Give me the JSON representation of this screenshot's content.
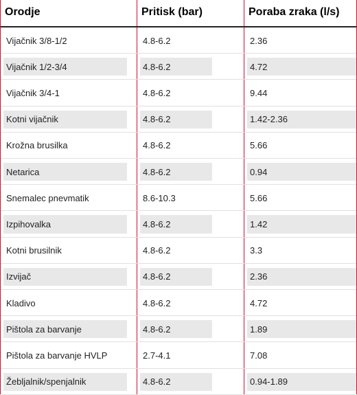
{
  "header": {
    "col1": "Orodje",
    "col2": "Pritisk  (bar)",
    "col3": "Poraba zraka (l/s)"
  },
  "rows": [
    {
      "tool": "Vijačnik 3/8-1/2",
      "pressure": "4.8-6.2",
      "consumption": "2.36"
    },
    {
      "tool": "Vijačnik 1/2-3/4",
      "pressure": "4.8-6.2",
      "consumption": "4.72"
    },
    {
      "tool": "Vijačnik 3/4-1",
      "pressure": "4.8-6.2",
      "consumption": "9.44"
    },
    {
      "tool": "Kotni vijačnik",
      "pressure": "4.8-6.2",
      "consumption": "1.42-2.36"
    },
    {
      "tool": "Krožna brusilka",
      "pressure": "4.8-6.2",
      "consumption": "5.66"
    },
    {
      "tool": "Netarica",
      "pressure": "4.8-6.2",
      "consumption": "0.94"
    },
    {
      "tool": "Snemalec pnevmatik",
      "pressure": "8.6-10.3",
      "consumption": "5.66"
    },
    {
      "tool": "Izpihovalka",
      "pressure": "4.8-6.2",
      "consumption": "1.42"
    },
    {
      "tool": "Kotni brusilnik",
      "pressure": "4.8-6.2",
      "consumption": "3.3"
    },
    {
      "tool": "Izvijač",
      "pressure": "4.8-6.2",
      "consumption": "2.36"
    },
    {
      "tool": "Kladivo",
      "pressure": "4.8-6.2",
      "consumption": "4.72"
    },
    {
      "tool": "Pištola za barvanje",
      "pressure": "4.8-6.2",
      "consumption": "1.89"
    },
    {
      "tool": "Pištola za barvanje HVLP",
      "pressure": "2.7-4.1",
      "consumption": "7.08"
    },
    {
      "tool": "Žebljalnik/spenjalnik",
      "pressure": "4.8-6.2",
      "consumption": "0.94-1.89"
    }
  ]
}
